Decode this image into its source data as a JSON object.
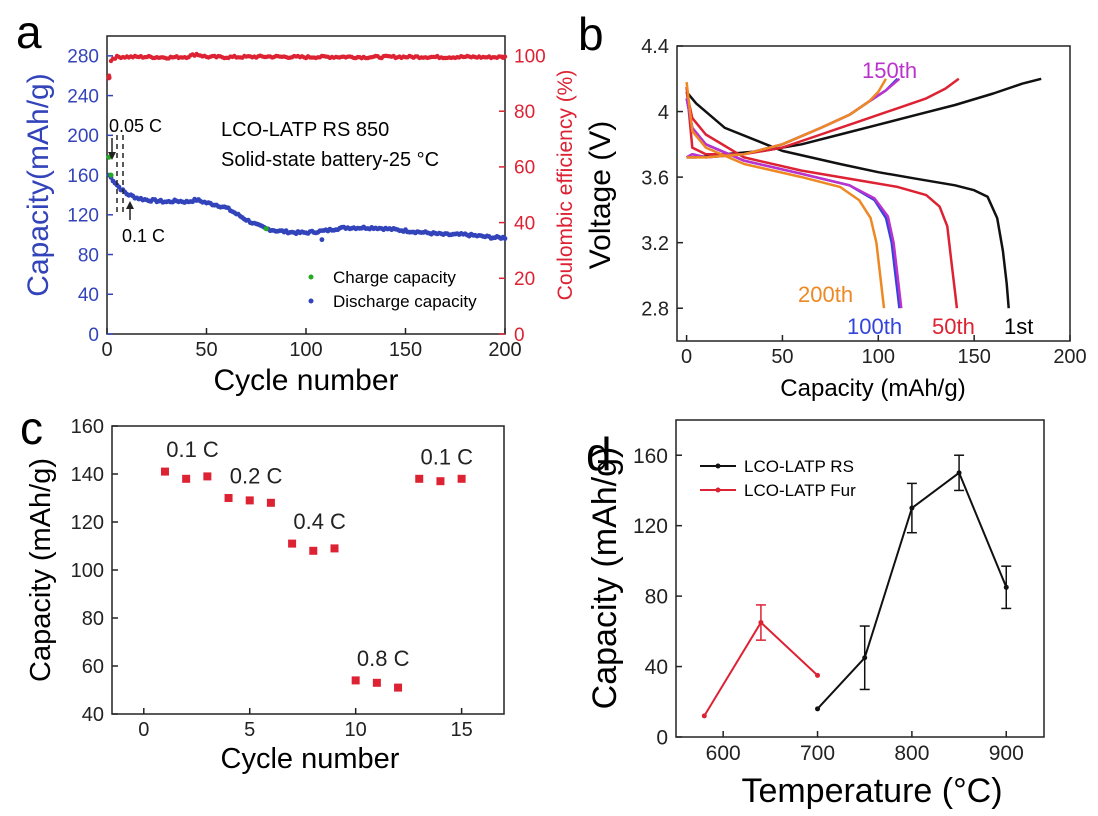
{
  "chart_data": [
    {
      "panel": "a",
      "type": "scatter",
      "xlabel": "Cycle number",
      "ylabel": "Capacity(mAh/g)",
      "y2label": "Coulombic efficiency (%)",
      "xlim": [
        0,
        200
      ],
      "ylim": [
        0,
        300
      ],
      "y2lim": [
        0,
        107
      ],
      "xticks": [
        0,
        50,
        100,
        150,
        200
      ],
      "yticks": [
        0,
        40,
        80,
        120,
        160,
        200,
        240,
        280
      ],
      "y2ticks": [
        0,
        20,
        40,
        60,
        80,
        100
      ],
      "annotations": [
        "LCO-LATP RS 850",
        "Solid-state battery-25 °C",
        "0.05 C",
        "0.1 C"
      ],
      "series": [
        {
          "name": "Charge capacity",
          "color": "#22aa22",
          "axis": "left",
          "x": [
            1,
            2,
            80
          ],
          "y": [
            178,
            160,
            106
          ]
        },
        {
          "name": "Discharge capacity",
          "color": "#3344bb",
          "axis": "left",
          "x": [
            1,
            3,
            5,
            7,
            10,
            15,
            20,
            25,
            30,
            35,
            40,
            45,
            50,
            55,
            60,
            65,
            70,
            75,
            80,
            85,
            90,
            95,
            100,
            105,
            110,
            115,
            120,
            125,
            130,
            135,
            140,
            145,
            150,
            155,
            160,
            165,
            170,
            175,
            180,
            185,
            190,
            195,
            200
          ],
          "y": [
            160,
            155,
            150,
            146,
            141,
            137,
            135,
            134,
            133,
            134,
            133,
            135,
            132,
            130,
            127,
            121,
            115,
            110,
            106,
            104,
            103,
            102,
            102,
            103,
            104,
            106,
            107,
            107,
            107,
            107,
            106,
            105,
            104,
            103,
            102,
            101,
            100,
            100,
            100,
            99,
            98,
            97,
            97
          ]
        },
        {
          "name": "Coulombic efficiency",
          "color": "#dd2233",
          "axis": "right",
          "x": [
            1,
            2,
            3,
            5,
            10,
            20,
            30,
            40,
            45,
            50,
            60,
            70,
            80,
            90,
            100,
            110,
            120,
            130,
            140,
            150,
            160,
            170,
            180,
            190,
            200
          ],
          "y": [
            93,
            98,
            99,
            99.5,
            99.5,
            99.5,
            99.3,
            99.5,
            100.5,
            99.5,
            99.4,
            99.5,
            99.6,
            99.5,
            99.4,
            99.5,
            99.5,
            99.4,
            99.5,
            99.5,
            99.5,
            99.4,
            99.5,
            99.4,
            99.4
          ]
        }
      ],
      "outliers": [
        {
          "x": 108,
          "y": 95
        }
      ]
    },
    {
      "panel": "b",
      "type": "line",
      "xlabel": "Capacity (mAh/g)",
      "ylabel": "Voltage (V)",
      "xlim": [
        -5,
        200
      ],
      "ylim": [
        2.6,
        4.4
      ],
      "xticks": [
        0,
        50,
        100,
        150,
        200
      ],
      "yticks": [
        2.8,
        3.2,
        3.6,
        4.0,
        4.4
      ],
      "series": [
        {
          "name": "1st",
          "color": "#111111",
          "charge": {
            "x": [
              0,
              5,
              20,
              40,
              60,
              80,
              100,
              120,
              140,
              160,
              175,
              185
            ],
            "y": [
              3.72,
              3.72,
              3.74,
              3.76,
              3.8,
              3.86,
              3.92,
              3.98,
              4.04,
              4.11,
              4.17,
              4.2
            ]
          },
          "discharge": {
            "x": [
              0,
              5,
              20,
              50,
              80,
              100,
              120,
              140,
              150,
              157,
              162,
              165,
              167,
              168
            ],
            "y": [
              4.12,
              4.05,
              3.9,
              3.76,
              3.68,
              3.63,
              3.59,
              3.55,
              3.52,
              3.48,
              3.35,
              3.15,
              2.95,
              2.8
            ]
          }
        },
        {
          "name": "50th",
          "color": "#dd2233",
          "charge": {
            "x": [
              0,
              3,
              10,
              30,
              50,
              70,
              90,
              110,
              125,
              135,
              142
            ],
            "y": [
              4.15,
              3.78,
              3.74,
              3.74,
              3.78,
              3.86,
              3.94,
              4.02,
              4.08,
              4.14,
              4.2
            ]
          },
          "discharge": {
            "x": [
              0,
              3,
              10,
              30,
              60,
              90,
              110,
              125,
              132,
              136,
              138,
              140,
              141
            ],
            "y": [
              4.12,
              3.96,
              3.86,
              3.72,
              3.64,
              3.58,
              3.54,
              3.49,
              3.42,
              3.3,
              3.1,
              2.9,
              2.8
            ]
          }
        },
        {
          "name": "100th",
          "color": "#3344dd",
          "charge": {
            "x": [
              0,
              3,
              10,
              30,
              50,
              70,
              85,
              95,
              104,
              110
            ],
            "y": [
              3.72,
              3.74,
              3.72,
              3.74,
              3.8,
              3.9,
              3.98,
              4.06,
              4.13,
              4.2
            ]
          },
          "discharge": {
            "x": [
              0,
              3,
              10,
              30,
              60,
              85,
              98,
              104,
              107,
              109,
              110,
              111
            ],
            "y": [
              4.08,
              3.9,
              3.8,
              3.7,
              3.62,
              3.55,
              3.46,
              3.35,
              3.2,
              3.0,
              2.9,
              2.8
            ]
          }
        },
        {
          "name": "150th",
          "color": "#bb33cc",
          "charge": {
            "x": [
              0,
              3,
              10,
              30,
              50,
              70,
              85,
              95,
              104,
              111
            ],
            "y": [
              3.72,
              3.74,
              3.72,
              3.74,
              3.8,
              3.9,
              3.98,
              4.06,
              4.13,
              4.2
            ]
          },
          "discharge": {
            "x": [
              0,
              3,
              10,
              30,
              60,
              85,
              98,
              105,
              108,
              110,
              111,
              112
            ],
            "y": [
              4.08,
              3.9,
              3.8,
              3.7,
              3.62,
              3.55,
              3.47,
              3.36,
              3.2,
              3.0,
              2.9,
              2.8
            ]
          }
        },
        {
          "name": "200th",
          "color": "#ee8822",
          "charge": {
            "x": [
              0,
              3,
              10,
              30,
              50,
              70,
              85,
              95,
              100,
              104
            ],
            "y": [
              3.72,
              3.72,
              3.72,
              3.74,
              3.8,
              3.9,
              3.98,
              4.06,
              4.12,
              4.2
            ]
          },
          "discharge": {
            "x": [
              0,
              3,
              10,
              30,
              60,
              80,
              90,
              96,
              99,
              101,
              102,
              103
            ],
            "y": [
              4.18,
              3.88,
              3.78,
              3.68,
              3.6,
              3.54,
              3.46,
              3.35,
              3.2,
              3.0,
              2.9,
              2.8
            ]
          }
        }
      ]
    },
    {
      "panel": "c",
      "type": "scatter",
      "xlabel": "Cycle number",
      "ylabel": "Capacity (mAh/g)",
      "xlim": [
        -1.5,
        17
      ],
      "ylim": [
        40,
        160
      ],
      "xticks": [
        0,
        5,
        10,
        15
      ],
      "yticks": [
        40,
        60,
        80,
        100,
        120,
        140,
        160
      ],
      "color": "#dd2233",
      "x": [
        1,
        2,
        3,
        4,
        5,
        6,
        7,
        8,
        9,
        10,
        11,
        12,
        13,
        14,
        15
      ],
      "y": [
        141,
        138,
        139,
        130,
        129,
        128,
        111,
        108,
        109,
        54,
        53,
        51,
        138,
        137,
        138
      ],
      "annotations": [
        {
          "text": "0.1 C",
          "x": 2.3,
          "y": 147
        },
        {
          "text": "0.2 C",
          "x": 5.3,
          "y": 136
        },
        {
          "text": "0.4 C",
          "x": 8.3,
          "y": 117
        },
        {
          "text": "0.8 C",
          "x": 11.3,
          "y": 60
        },
        {
          "text": "0.1 C",
          "x": 14.3,
          "y": 144
        }
      ]
    },
    {
      "panel": "d",
      "type": "line",
      "xlabel": "Temperature (°C)",
      "ylabel": "Capacity (mAh/g)",
      "xlim": [
        550,
        940
      ],
      "ylim": [
        0,
        180
      ],
      "xticks": [
        600,
        700,
        800,
        900
      ],
      "yticks": [
        0,
        40,
        80,
        120,
        160
      ],
      "legend": "top-left",
      "series": [
        {
          "name": "LCO-LATP RS",
          "color": "#111111",
          "x": [
            700,
            750,
            800,
            850,
            900
          ],
          "y": [
            16,
            45,
            130,
            150,
            85
          ],
          "err": [
            0,
            18,
            14,
            10,
            12
          ]
        },
        {
          "name": "LCO-LATP Fur",
          "color": "#dd2233",
          "x": [
            580,
            640,
            700
          ],
          "y": [
            12,
            65,
            35
          ],
          "err": [
            0,
            10,
            0
          ]
        }
      ]
    }
  ],
  "panel_a": {
    "letter": "a",
    "xlabel": "Cycle number",
    "ylabel": "Capacity(mAh/g)",
    "y2label": "Coulombic efficiency (%)",
    "title1": "LCO-LATP RS 850",
    "title2": "Solid-state battery-25 °C",
    "rate1": "0.05 C",
    "rate2": "0.1 C",
    "legend1": "Charge capacity",
    "legend2": "Discharge capacity"
  },
  "panel_b": {
    "letter": "b",
    "xlabel": "Capacity (mAh/g)",
    "ylabel": "Voltage (V)",
    "lbl_150": "150th",
    "lbl_200": "200th",
    "lbl_100": "100th",
    "lbl_50": "50th",
    "lbl_1": "1st"
  },
  "panel_c": {
    "letter": "c",
    "xlabel": "Cycle number",
    "ylabel": "Capacity (mAh/g)"
  },
  "panel_d": {
    "letter": "d",
    "xlabel": "Temperature (°C)",
    "ylabel": "Capacity (mAh/g)",
    "legend1": "LCO-LATP RS",
    "legend2": "LCO-LATP Fur"
  }
}
